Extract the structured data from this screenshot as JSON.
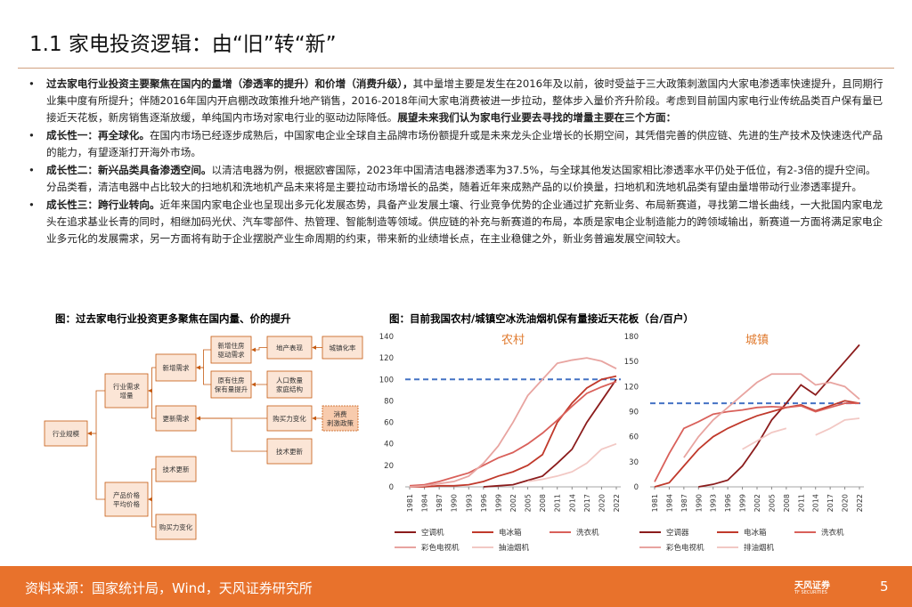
{
  "header": {
    "title": "1.1 家电投资逻辑：由“旧”转“新”"
  },
  "bullets": [
    {
      "segments": [
        {
          "text": "过去家电行业投资主要聚焦在国内的量增（渗透率的提升）和价增（消费升级），",
          "bold": true
        },
        {
          "text": "其中量增主要是发生在2016年及以前，彼时受益于三大政策刺激国内大家电渗透率快速提升，且同期行业集中度有所提升；伴随2016年国内开启棚改政策推升地产销售，2016-2018年间大家电消费被进一步拉动，整体步入量价齐升阶段。考虑到目前国内家电行业传统品类百户保有量已接近天花板，新房销售逐渐放缓，单纯国内市场对家电行业的驱动边际降低。",
          "bold": false
        },
        {
          "text": "展望未来我们认为家电行业要去寻找的增量主要在三个方面：",
          "bold": true
        }
      ]
    },
    {
      "segments": [
        {
          "text": "成长性一：再全球化。",
          "bold": true
        },
        {
          "text": "在国内市场已经逐步成熟后，中国家电企业全球自主品牌市场份额提升或是未来龙头企业增长的长期空间，其凭借完善的供应链、先进的生产技术及快速迭代产品的能力，有望逐渐打开海外市场。",
          "bold": false
        }
      ]
    },
    {
      "segments": [
        {
          "text": "成长性二：新兴品类具备渗透空间。",
          "bold": true
        },
        {
          "text": "以清洁电器为例，根据欧睿国际，2023年中国清洁电器渗透率为37.5%，与全球其他发达国家相比渗透率水平仍处于低位，有2-3倍的提升空间。分品类看，清洁电器中占比较大的扫地机和洗地机产品未来将是主要拉动市场增长的品类，随着近年来成熟产品的以价换量，扫地机和洗地机品类有望由量增带动行业渗透率提升。",
          "bold": false
        }
      ]
    },
    {
      "segments": [
        {
          "text": "成长性三：跨行业转向。",
          "bold": true
        },
        {
          "text": "近年来国内家电企业也呈现出多元化发展态势，具备产业发展土壤、行业竞争优势的企业通过扩充新业务、布局新赛道，寻找第二增长曲线，一大批国内家电龙头在追求基业长青的同时，相继加码光伏、汽车零部件、热管理、智能制造等领域。供应链的补充与新赛道的布局，本质是家电企业制造能力的跨领域输出，新赛道一方面将满足家电企业多元化的发展需求，另一方面将有助于企业摆脱产业生命周期的约束，带来新的业绩增长点，在主业稳健之外，新业务普遍发展空间较大。",
          "bold": false
        }
      ]
    }
  ],
  "figure_left": {
    "title": "图：过去家电行业投资更多聚焦在国内量、价的提升",
    "nodes": [
      {
        "lines": [
          "行业规模"
        ]
      },
      {
        "lines": [
          "行业需求",
          "增量"
        ]
      },
      {
        "lines": [
          "产品价格",
          "平均价格"
        ]
      },
      {
        "lines": [
          "新增需求"
        ]
      },
      {
        "lines": [
          "更新需求"
        ]
      },
      {
        "lines": [
          "技术更新"
        ]
      },
      {
        "lines": [
          "购买力变化"
        ]
      },
      {
        "lines": [
          "新增住房",
          "驱动需求"
        ]
      },
      {
        "lines": [
          "原有住房",
          "保有量提升"
        ]
      },
      {
        "lines": [
          "地产表现"
        ]
      },
      {
        "lines": [
          "城镇化率"
        ]
      },
      {
        "lines": [
          "人口数量",
          "家庭结构"
        ]
      },
      {
        "lines": [
          "购买力变化"
        ]
      },
      {
        "lines": [
          "消费",
          "刺激政策"
        ]
      },
      {
        "lines": [
          "技术更新"
        ]
      }
    ]
  },
  "figure_right_title": "图：目前我国农村/城镇空冰洗油烟机保有量接近天花板（台/百户）",
  "chart_data": [
    {
      "type": "line",
      "title": "农村",
      "categories": [
        "1981",
        "1984",
        "1987",
        "1990",
        "1993",
        "1996",
        "1999",
        "2002",
        "2005",
        "2008",
        "2011",
        "2014",
        "2017",
        "2020",
        "2022"
      ],
      "ylim": [
        0,
        140
      ],
      "yticks": [
        0,
        20,
        40,
        60,
        80,
        100,
        120,
        140
      ],
      "reference_line": 100,
      "series": [
        {
          "name": "空调机",
          "color": "#8b1c1c",
          "values": [
            null,
            null,
            null,
            null,
            null,
            0,
            1,
            2,
            6,
            10,
            22,
            35,
            60,
            80,
            100
          ]
        },
        {
          "name": "电冰箱",
          "color": "#c0392b",
          "values": [
            0,
            0,
            1,
            1,
            2,
            5,
            10,
            14,
            20,
            30,
            60,
            78,
            92,
            100,
            103
          ]
        },
        {
          "name": "洗衣机",
          "color": "#d9605a",
          "values": [
            1,
            2,
            5,
            9,
            13,
            20,
            27,
            32,
            40,
            50,
            62,
            75,
            87,
            93,
            98
          ]
        },
        {
          "name": "彩色电视机",
          "color": "#e8a4a0",
          "values": [
            0,
            1,
            3,
            5,
            10,
            22,
            38,
            60,
            85,
            100,
            115,
            118,
            120,
            117,
            110
          ]
        },
        {
          "name": "抽油烟机",
          "color": "#f2c8c4",
          "values": [
            null,
            null,
            null,
            null,
            null,
            null,
            null,
            null,
            5,
            7,
            10,
            14,
            22,
            35,
            40
          ]
        }
      ]
    },
    {
      "type": "line",
      "title": "城镇",
      "categories": [
        "1981",
        "1984",
        "1987",
        "1990",
        "1993",
        "1996",
        "1999",
        "2002",
        "2005",
        "2008",
        "2011",
        "2014",
        "2017",
        "2020",
        "2022"
      ],
      "ylim": [
        0,
        180
      ],
      "yticks": [
        0,
        30,
        60,
        90,
        120,
        150,
        180
      ],
      "reference_line": 100,
      "series": [
        {
          "name": "空调器",
          "color": "#8b1c1c",
          "values": [
            null,
            null,
            null,
            0,
            3,
            8,
            25,
            50,
            80,
            100,
            122,
            110,
            130,
            150,
            170
          ]
        },
        {
          "name": "电冰箱",
          "color": "#c0392b",
          "values": [
            0,
            5,
            25,
            45,
            60,
            70,
            78,
            85,
            90,
            95,
            98,
            91,
            97,
            103,
            100
          ]
        },
        {
          "name": "洗衣机",
          "color": "#d9605a",
          "values": [
            6,
            40,
            70,
            78,
            87,
            90,
            92,
            95,
            96,
            95,
            97,
            90,
            95,
            100,
            100
          ]
        },
        {
          "name": "彩色电视机",
          "color": "#e8a4a0",
          "values": [
            null,
            null,
            35,
            60,
            80,
            95,
            110,
            125,
            135,
            135,
            135,
            122,
            125,
            120,
            105
          ]
        },
        {
          "name": "排油烟机",
          "color": "#f2c8c4",
          "values": [
            null,
            null,
            null,
            null,
            null,
            null,
            45,
            55,
            65,
            70,
            null,
            62,
            70,
            80,
            82
          ]
        }
      ]
    }
  ],
  "footer": {
    "source": "资料来源：国家统计局，Wind，天风证券研究所",
    "page": "5",
    "logo": "天风证券",
    "logo_sub": "TF SECURITIES"
  }
}
